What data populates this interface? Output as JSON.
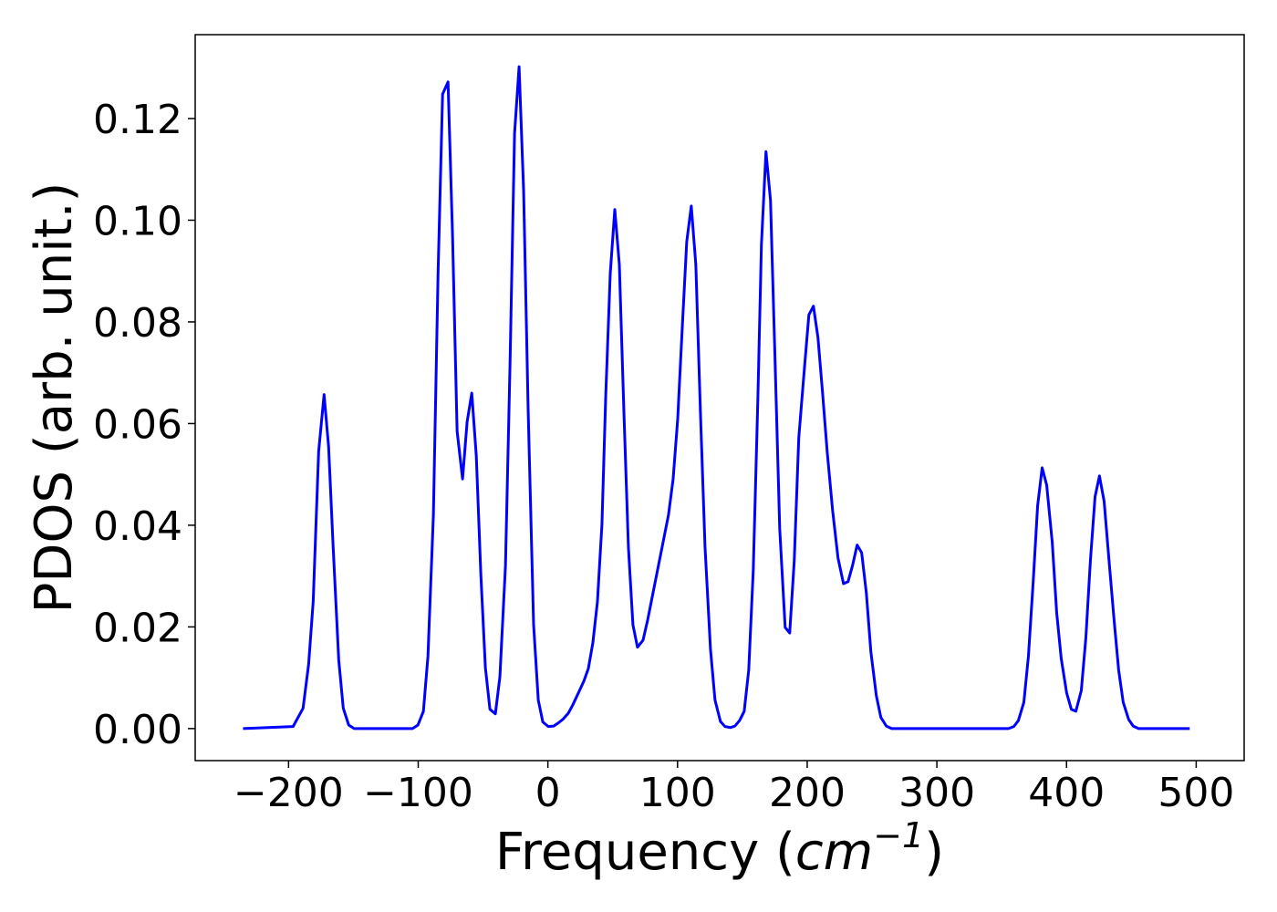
{
  "chart_data": {
    "type": "line",
    "xlabel": [
      "Frequency (",
      "cm",
      "−1",
      ")"
    ],
    "ylabel": "PDOS (arb. unit.)",
    "color": "#0000ff",
    "xlim": [
      -272,
      537
    ],
    "ylim": [
      -0.0063,
      0.1365
    ],
    "xticks": [
      {
        "value": -200,
        "label": "−200"
      },
      {
        "value": -100,
        "label": "−100"
      },
      0,
      100,
      200,
      300,
      400,
      500
    ],
    "yticks": [
      {
        "value": 0,
        "label": "0.00"
      },
      {
        "value": 0.02,
        "label": "0.02"
      },
      {
        "value": 0.04,
        "label": "0.04"
      },
      {
        "value": 0.06,
        "label": "0.06"
      },
      {
        "value": 0.08,
        "label": "0.08"
      },
      {
        "value": 0.1,
        "label": "0.10"
      },
      {
        "value": 0.12,
        "label": "0.12"
      }
    ],
    "x": [
      -235.1,
      -196.5,
      -188.8,
      -184.5,
      -181,
      -176.8,
      -172.6,
      -169.1,
      -165.6,
      -161.3,
      -157.8,
      -153.6,
      -149.4,
      -104.4,
      -100.2,
      -96,
      -92.5,
      -88.3,
      -84.7,
      -81.2,
      -77,
      -73.5,
      -70,
      -65.8,
      -62.3,
      -58.7,
      -55.2,
      -51.7,
      -48.2,
      -44.7,
      -40.5,
      -37,
      -32.7,
      -29.2,
      -25.7,
      -22.2,
      -18.7,
      -15.2,
      -11,
      -7.4,
      -3.9,
      0.3,
      4.5,
      8,
      11.5,
      15.7,
      19.3,
      23.5,
      27.7,
      31.2,
      34.7,
      38.2,
      41.7,
      44.6,
      48.1,
      51.6,
      55.1,
      58.6,
      62.1,
      65.6,
      69.1,
      73.4,
      76.9,
      81.1,
      85.3,
      89.5,
      93,
      96.6,
      100.1,
      103.6,
      107.1,
      110.6,
      114.1,
      117.6,
      121.2,
      125.4,
      128.9,
      133.1,
      136.6,
      140.8,
      144.3,
      147.9,
      151.4,
      154.9,
      158.4,
      161.9,
      164.7,
      168.2,
      171.7,
      175.3,
      178.8,
      183,
      186.5,
      190,
      193.5,
      197.8,
      201.3,
      204.8,
      208.3,
      211.8,
      215.4,
      219.6,
      223.8,
      228,
      231.5,
      235,
      238.5,
      242,
      245.6,
      249.1,
      253.3,
      256.8,
      261,
      265.2,
      355.2,
      359.4,
      362.9,
      367.1,
      370.6,
      374.2,
      377.7,
      381.2,
      384.7,
      389,
      392.4,
      395.9,
      400.1,
      403.7,
      407.2,
      411.4,
      414.9,
      418.4,
      422,
      425.4,
      429,
      432.5,
      436.7,
      440.2,
      443.7,
      447.9,
      451.4,
      455.6,
      495
    ],
    "values": [
      0,
      0.0004,
      0.004,
      0.0127,
      0.025,
      0.0545,
      0.0657,
      0.0554,
      0.0357,
      0.0135,
      0.004,
      0.0007,
      0,
      0,
      0.0007,
      0.0034,
      0.0142,
      0.042,
      0.0895,
      0.1248,
      0.1272,
      0.0967,
      0.0585,
      0.0491,
      0.0603,
      0.066,
      0.0536,
      0.0303,
      0.012,
      0.0038,
      0.0029,
      0.0102,
      0.0321,
      0.0716,
      0.1171,
      0.1302,
      0.1057,
      0.0626,
      0.0204,
      0.0056,
      0.0013,
      0.0004,
      0.0005,
      0.0011,
      0.0018,
      0.003,
      0.0047,
      0.007,
      0.0093,
      0.0118,
      0.0169,
      0.0249,
      0.0402,
      0.0653,
      0.0895,
      0.1021,
      0.0913,
      0.0626,
      0.0357,
      0.0204,
      0.016,
      0.0174,
      0.0213,
      0.0267,
      0.0321,
      0.0375,
      0.042,
      0.0491,
      0.0608,
      0.0787,
      0.0958,
      0.1028,
      0.0913,
      0.0626,
      0.0357,
      0.0156,
      0.0056,
      0.0014,
      0.0004,
      0.0002,
      0.0005,
      0.0016,
      0.0034,
      0.0115,
      0.0312,
      0.0644,
      0.0952,
      0.1135,
      0.1039,
      0.0716,
      0.0393,
      0.0199,
      0.0188,
      0.033,
      0.0572,
      0.0707,
      0.0814,
      0.0831,
      0.0769,
      0.0662,
      0.0545,
      0.0429,
      0.0335,
      0.0285,
      0.0289,
      0.0321,
      0.0361,
      0.0346,
      0.0267,
      0.0151,
      0.0065,
      0.0022,
      0.0005,
      0,
      0,
      0.0004,
      0.0016,
      0.0052,
      0.0142,
      0.0285,
      0.0438,
      0.0513,
      0.0479,
      0.0366,
      0.0228,
      0.0138,
      0.007,
      0.0038,
      0.0034,
      0.0075,
      0.0178,
      0.033,
      0.0456,
      0.0497,
      0.0447,
      0.0339,
      0.0213,
      0.0115,
      0.0052,
      0.0018,
      0.0005,
      0,
      0
    ]
  }
}
